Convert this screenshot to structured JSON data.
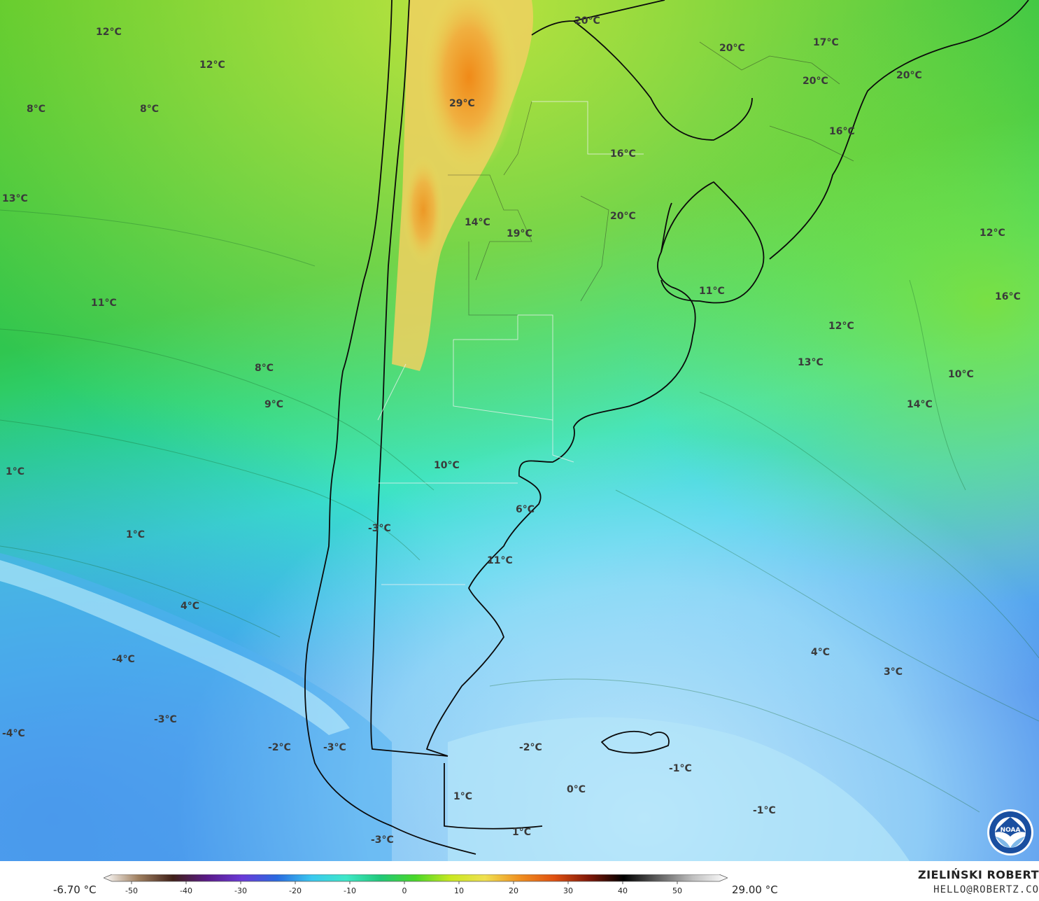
{
  "map": {
    "temperature_labels": [
      {
        "text": "12°C"
      },
      {
        "text": "12°C"
      },
      {
        "text": "8°C"
      },
      {
        "text": "8°C"
      },
      {
        "text": "13°C"
      },
      {
        "text": "11°C"
      },
      {
        "text": "8°C"
      },
      {
        "text": "9°C"
      },
      {
        "text": "1°C"
      },
      {
        "text": "1°C"
      },
      {
        "text": "4°C"
      },
      {
        "text": "-4°C"
      },
      {
        "text": "-3°C"
      },
      {
        "text": "-4°C"
      },
      {
        "text": "-2°C"
      },
      {
        "text": "-3°C"
      },
      {
        "text": "-3°C"
      },
      {
        "text": "29°C"
      },
      {
        "text": "14°C"
      },
      {
        "text": "19°C"
      },
      {
        "text": "20°C"
      },
      {
        "text": "16°C"
      },
      {
        "text": "20°C"
      },
      {
        "text": "20°C"
      },
      {
        "text": "17°C"
      },
      {
        "text": "20°C"
      },
      {
        "text": "20°C"
      },
      {
        "text": "16°C"
      },
      {
        "text": "11°C"
      },
      {
        "text": "12°C"
      },
      {
        "text": "16°C"
      },
      {
        "text": "12°C"
      },
      {
        "text": "13°C"
      },
      {
        "text": "10°C"
      },
      {
        "text": "14°C"
      },
      {
        "text": "10°C"
      },
      {
        "text": "6°C"
      },
      {
        "text": "11°C"
      },
      {
        "text": "-3°C"
      },
      {
        "text": "4°C"
      },
      {
        "text": "3°C"
      },
      {
        "text": "-2°C"
      },
      {
        "text": "-1°C"
      },
      {
        "text": "0°C"
      },
      {
        "text": "-1°C"
      },
      {
        "text": "1°C"
      },
      {
        "text": "1°C"
      }
    ]
  },
  "colorbar": {
    "min_label": "-6.70 °C",
    "max_label": "29.00 °C",
    "ticks": [
      "-50",
      "-40",
      "-30",
      "-20",
      "-10",
      "0",
      "10",
      "20",
      "30",
      "40",
      "50"
    ],
    "colors": [
      "#ffffff",
      "#a08060",
      "#402018",
      "#5a1a8a",
      "#6a3ad8",
      "#2a6ae0",
      "#3ac8f0",
      "#3ee8c8",
      "#20c878",
      "#4ad828",
      "#c8e820",
      "#f0e050",
      "#f09020",
      "#e05010",
      "#801808",
      "#000000",
      "#606060",
      "#c0c0c0",
      "#ffffff"
    ]
  },
  "credits": {
    "author": "ZIELIŃSKI ROBERT",
    "email": "HELLO@ROBERTZ.CO",
    "logo_text": "NOAA"
  }
}
